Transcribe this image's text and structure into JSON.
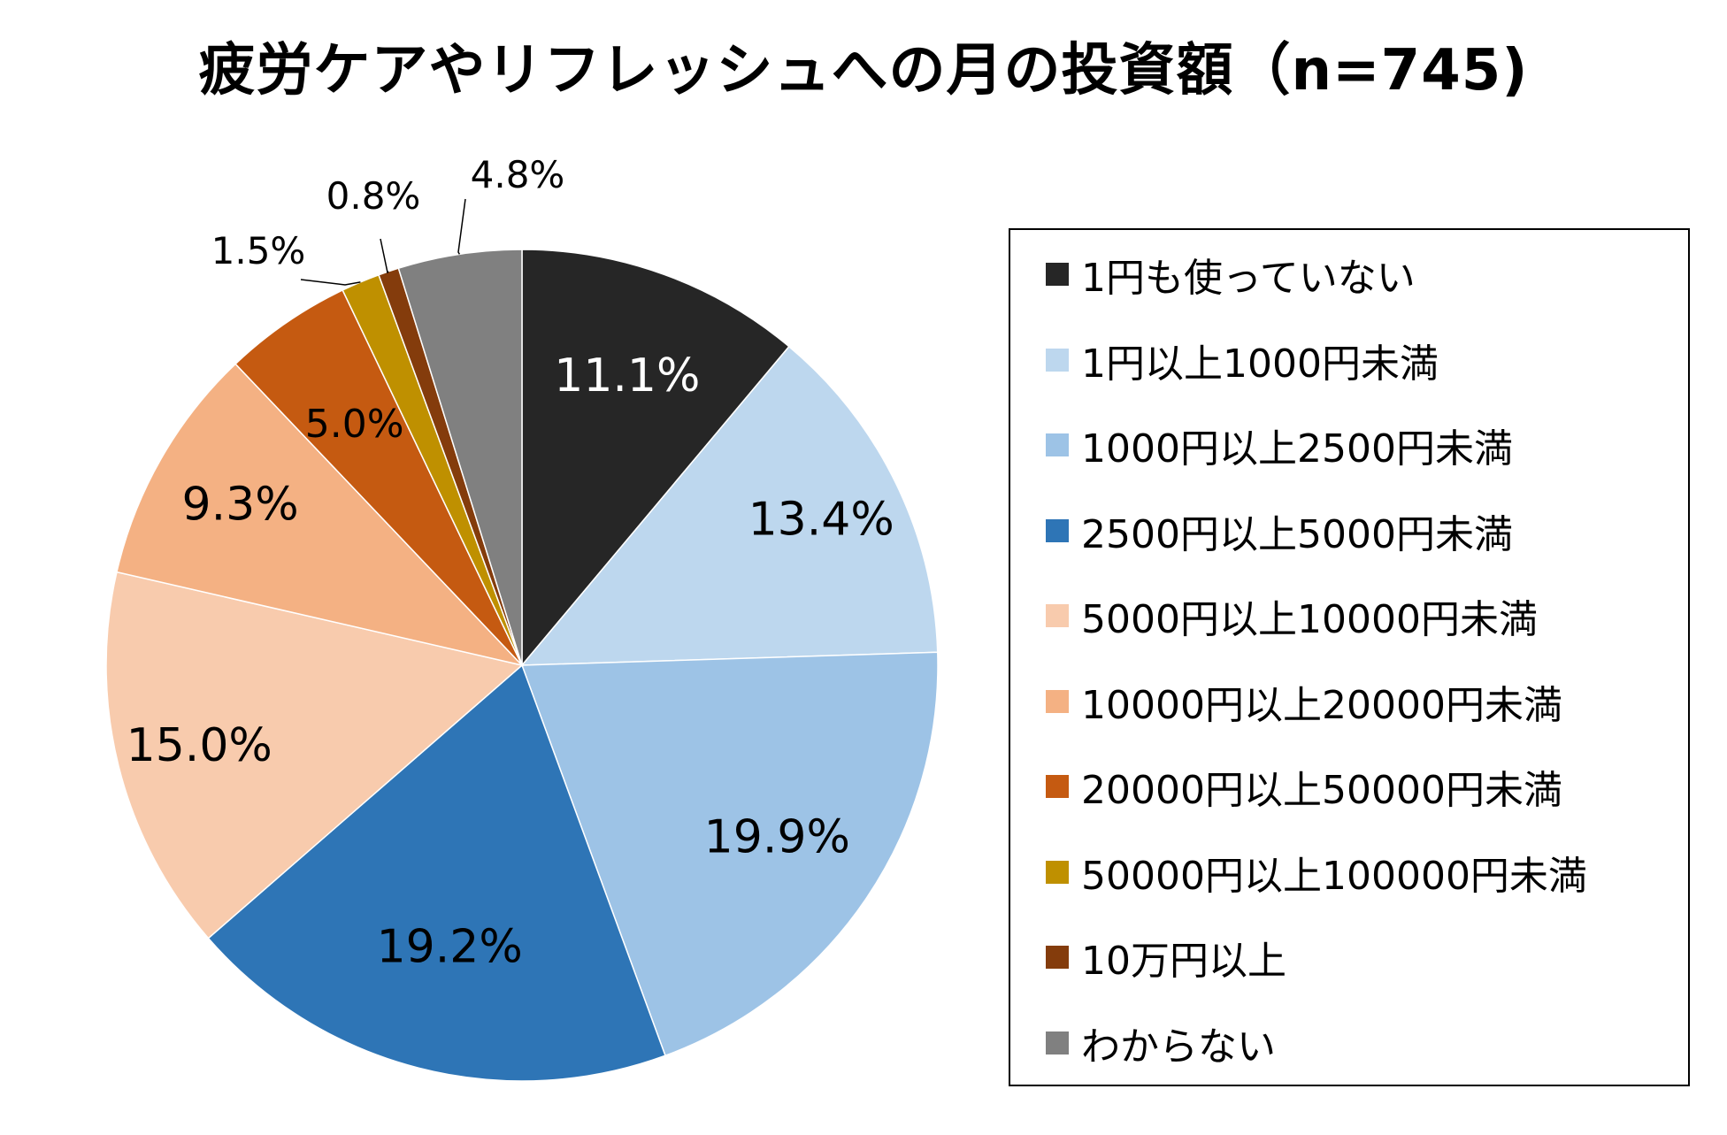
{
  "chart_data": {
    "type": "pie",
    "title": "疲労ケアやリフレッシュへの月の投資額（n=745)",
    "categories": [
      "1円も使っていない",
      "1円以上1000円未満",
      "1000円以上2500円未満",
      "2500円以上5000円未満",
      "5000円以上10000円未満",
      "10000円以上20000円未満",
      "20000円以上50000円未満",
      "50000円以上100000円未満",
      "10万円以上",
      "わからない"
    ],
    "values": [
      11.1,
      13.4,
      19.9,
      19.2,
      15.0,
      9.3,
      5.0,
      1.5,
      0.8,
      4.8
    ],
    "labels": [
      "11.1%",
      "13.4%",
      "19.9%",
      "19.2%",
      "15.0%",
      "9.3%",
      "5.0%",
      "1.5%",
      "0.8%",
      "4.8%"
    ],
    "colors": [
      "#262626",
      "#bdd7ee",
      "#9dc3e6",
      "#2e75b6",
      "#f8cbad",
      "#f4b183",
      "#c55a11",
      "#bf9000",
      "#843c0c",
      "#808080"
    ],
    "label_colors": [
      "#ffffff",
      "#000000",
      "#000000",
      "#000000",
      "#000000",
      "#000000",
      "#000000",
      "#000000",
      "#000000",
      "#000000"
    ],
    "legend_position": "right"
  }
}
